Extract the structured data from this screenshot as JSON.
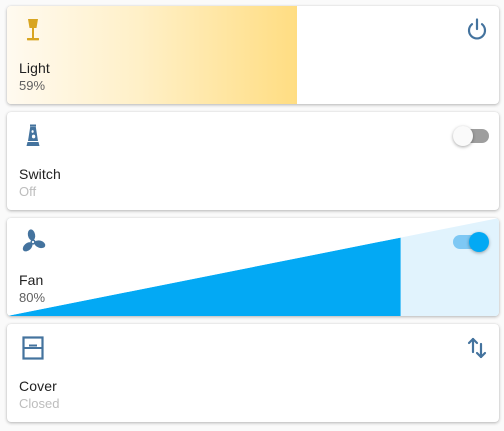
{
  "colors": {
    "accent": "#03a9f4",
    "icon_blue": "#44739e",
    "light_icon": "#d8a521",
    "light_fill": "#ffdd82"
  },
  "cards": [
    {
      "name": "Light",
      "state": "59%",
      "brightness_fraction": 0.59,
      "icon": "floor-lamp-icon",
      "action_icon": "power-icon"
    },
    {
      "name": "Switch",
      "state": "Off",
      "icon": "lava-lamp-icon",
      "toggle_on": false
    },
    {
      "name": "Fan",
      "state": "80%",
      "speed_fraction": 0.8,
      "icon": "fan-icon",
      "toggle_on": true
    },
    {
      "name": "Cover",
      "state": "Closed",
      "icon": "window-closed-icon",
      "action_icon": "swap-vertical-icon"
    }
  ]
}
